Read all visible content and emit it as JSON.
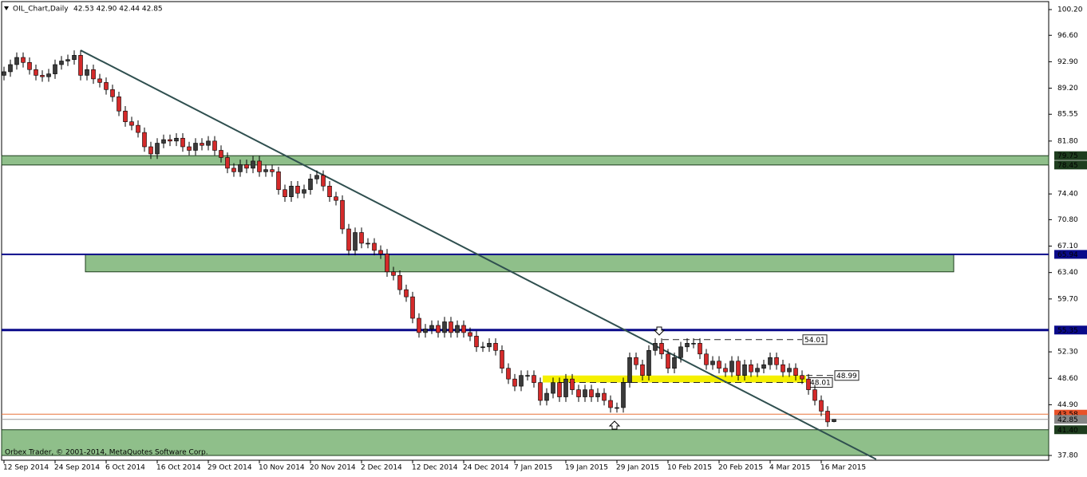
{
  "chart_data": {
    "type": "candlestick",
    "header": {
      "symbol": "OIL_Chart,Daily",
      "quote": "42.53 42.90 42.44 42.85"
    },
    "copyright": "Orbex Trader, © 2001-2014, MetaQuotes Software Corp.",
    "categories": [
      "12 Sep 2014",
      null,
      null,
      null,
      null,
      null,
      null,
      null,
      "24 Sep 2014",
      null,
      null,
      null,
      null,
      null,
      null,
      null,
      "6 Oct 2014",
      null,
      null,
      null,
      null,
      null,
      null,
      null,
      "16 Oct 2014",
      null,
      null,
      null,
      null,
      null,
      null,
      null,
      "29 Oct 2014",
      null,
      null,
      null,
      null,
      null,
      null,
      null,
      "10 Nov 2014",
      null,
      null,
      null,
      null,
      null,
      null,
      null,
      "20 Nov 2014",
      null,
      null,
      null,
      null,
      null,
      null,
      null,
      "2 Dec 2014",
      null,
      null,
      null,
      null,
      null,
      null,
      null,
      "12 Dec 2014",
      null,
      null,
      null,
      null,
      null,
      null,
      null,
      "24 Dec 2014",
      null,
      null,
      null,
      null,
      null,
      null,
      null,
      "7 Jan 2015",
      null,
      null,
      null,
      null,
      null,
      null,
      null,
      "19 Jan 2015",
      null,
      null,
      null,
      null,
      null,
      null,
      null,
      "29 Jan 2015",
      null,
      null,
      null,
      null,
      null,
      null,
      null,
      "10 Feb 2015",
      null,
      null,
      null,
      null,
      null,
      null,
      null,
      "20 Feb 2015",
      null,
      null,
      null,
      null,
      null,
      null,
      null,
      "4 Mar 2015",
      null,
      null,
      null,
      null,
      null,
      null,
      null,
      "16 Mar 2015",
      null,
      null
    ],
    "open": [
      91.0,
      91.5,
      92.5,
      93.5,
      92.8,
      91.8,
      91.0,
      90.8,
      91.2,
      92.5,
      93.0,
      93.2,
      93.8,
      91.0,
      91.8,
      90.5,
      90.0,
      89.0,
      88.0,
      86.0,
      84.5,
      84.0,
      83.0,
      81.0,
      80.0,
      81.5,
      82.0,
      81.8,
      82.2,
      81.0,
      80.5,
      81.5,
      81.2,
      81.8,
      80.5,
      79.5,
      78.0,
      77.5,
      78.5,
      78.0,
      79.0,
      77.5,
      77.8,
      77.5,
      75.0,
      74.0,
      75.5,
      74.5,
      75.0,
      76.5,
      77.0,
      75.5,
      74.0,
      73.5,
      69.5,
      66.5,
      69.0,
      67.5,
      67.5,
      66.5,
      66.0,
      63.5,
      63.0,
      61.0,
      60.0,
      57.0,
      55.0,
      55.5,
      56.0,
      55.0,
      56.5,
      55.0,
      56.0,
      55.0,
      54.5,
      53.0,
      53.0,
      53.5,
      52.5,
      50.0,
      48.5,
      47.5,
      49.0,
      49.0,
      48.0,
      45.5,
      46.5,
      48.0,
      46.0,
      48.5,
      47.0,
      46.0,
      47.0,
      46.0,
      46.5,
      45.5,
      44.5,
      44.5,
      48.0,
      51.5,
      50.5,
      49.0,
      52.5,
      53.5,
      52.0,
      50.0,
      51.5,
      53.0,
      53.5,
      53.5,
      52.0,
      50.5,
      51.0,
      50.0,
      49.5,
      51.0,
      49.0,
      50.5,
      49.5,
      50.0,
      50.5,
      51.5,
      50.5,
      49.5,
      50.0,
      49.0,
      48.5,
      47.0,
      45.5,
      44.0,
      42.53
    ],
    "high": [
      92.2,
      93.2,
      94.2,
      94.2,
      93.5,
      92.5,
      91.7,
      91.9,
      93.2,
      93.7,
      93.9,
      94.5,
      94.5,
      92.5,
      92.5,
      91.2,
      90.7,
      89.7,
      88.7,
      86.7,
      85.2,
      84.7,
      83.7,
      81.7,
      82.2,
      82.7,
      82.7,
      82.9,
      82.9,
      81.7,
      82.2,
      82.2,
      82.5,
      82.5,
      81.2,
      80.2,
      78.7,
      79.2,
      79.2,
      79.7,
      79.7,
      78.5,
      78.5,
      78.2,
      75.7,
      76.2,
      76.2,
      75.7,
      77.2,
      77.7,
      77.7,
      76.2,
      74.7,
      74.2,
      70.2,
      69.7,
      69.7,
      68.2,
      68.2,
      67.2,
      66.7,
      64.2,
      63.7,
      61.7,
      60.7,
      57.7,
      56.2,
      56.7,
      56.7,
      57.2,
      57.2,
      56.7,
      56.7,
      55.7,
      55.2,
      53.7,
      54.2,
      54.2,
      53.2,
      50.7,
      49.2,
      49.7,
      49.7,
      49.7,
      48.7,
      47.2,
      48.7,
      48.7,
      49.2,
      49.2,
      47.7,
      47.7,
      47.7,
      47.2,
      47.2,
      46.2,
      45.2,
      48.7,
      52.2,
      52.2,
      51.2,
      53.2,
      54.2,
      54.2,
      52.7,
      52.2,
      53.7,
      54.2,
      54.2,
      54.2,
      52.7,
      51.7,
      51.7,
      50.7,
      51.7,
      51.7,
      51.2,
      51.2,
      50.7,
      51.2,
      52.2,
      52.2,
      51.2,
      50.7,
      50.7,
      49.7,
      49.2,
      47.7,
      46.2,
      44.7,
      42.9
    ],
    "low": [
      90.3,
      90.8,
      91.8,
      92.1,
      91.1,
      90.3,
      90.1,
      90.1,
      90.5,
      91.8,
      92.3,
      92.5,
      90.3,
      90.3,
      89.8,
      89.3,
      88.3,
      87.3,
      85.3,
      83.8,
      83.3,
      82.3,
      80.3,
      79.3,
      79.3,
      80.8,
      81.1,
      81.1,
      80.3,
      79.8,
      79.8,
      80.5,
      80.5,
      79.8,
      78.8,
      77.3,
      76.8,
      76.8,
      77.3,
      77.3,
      76.8,
      76.8,
      76.8,
      74.3,
      73.3,
      73.3,
      73.8,
      73.8,
      74.3,
      75.8,
      74.8,
      73.3,
      72.8,
      68.8,
      65.8,
      65.8,
      66.8,
      66.8,
      65.8,
      65.3,
      62.8,
      62.3,
      60.3,
      59.3,
      56.3,
      54.3,
      54.3,
      54.8,
      54.3,
      54.3,
      54.3,
      54.3,
      54.3,
      53.8,
      52.3,
      52.3,
      52.3,
      51.8,
      49.3,
      47.8,
      46.8,
      46.8,
      48.3,
      47.3,
      44.8,
      44.8,
      45.8,
      45.3,
      45.3,
      46.3,
      45.3,
      45.3,
      45.3,
      45.3,
      44.8,
      43.8,
      43.8,
      43.8,
      47.3,
      49.8,
      48.3,
      48.3,
      51.8,
      51.3,
      49.3,
      49.3,
      50.8,
      52.3,
      52.8,
      51.3,
      49.8,
      49.8,
      49.3,
      48.8,
      48.8,
      48.3,
      48.3,
      48.8,
      48.8,
      49.3,
      49.8,
      49.8,
      48.8,
      48.8,
      48.3,
      47.8,
      46.3,
      44.8,
      43.3,
      41.8,
      42.44
    ],
    "close": [
      91.5,
      92.5,
      93.5,
      92.8,
      91.8,
      91.0,
      90.8,
      91.2,
      92.5,
      93.0,
      93.2,
      93.8,
      91.0,
      91.8,
      90.5,
      90.0,
      89.0,
      88.0,
      86.0,
      84.5,
      84.0,
      83.0,
      81.0,
      80.0,
      81.5,
      82.0,
      81.8,
      82.2,
      81.0,
      80.5,
      81.5,
      81.2,
      81.8,
      80.5,
      79.5,
      78.0,
      77.5,
      78.5,
      78.0,
      79.0,
      77.5,
      77.8,
      77.5,
      75.0,
      74.0,
      75.5,
      74.5,
      75.0,
      76.5,
      77.0,
      75.5,
      74.0,
      73.5,
      69.5,
      66.5,
      69.0,
      67.5,
      67.5,
      66.5,
      66.0,
      63.5,
      63.0,
      61.0,
      60.0,
      57.0,
      55.0,
      55.5,
      56.0,
      55.0,
      56.5,
      55.0,
      56.0,
      55.0,
      54.5,
      53.0,
      53.0,
      53.5,
      52.5,
      50.0,
      48.5,
      47.5,
      49.0,
      49.0,
      48.0,
      45.5,
      46.5,
      48.0,
      46.0,
      48.5,
      47.0,
      46.0,
      47.0,
      46.0,
      46.5,
      45.5,
      44.5,
      44.5,
      48.0,
      51.5,
      50.5,
      49.0,
      52.5,
      53.5,
      52.0,
      50.0,
      51.5,
      53.0,
      53.5,
      53.5,
      52.0,
      50.5,
      51.0,
      50.0,
      49.5,
      51.0,
      49.0,
      50.5,
      49.5,
      50.0,
      50.5,
      51.5,
      50.5,
      49.5,
      50.0,
      49.0,
      48.5,
      47.0,
      45.5,
      44.0,
      42.5,
      42.85
    ],
    "up_color": "#3a3a3a",
    "down_color": "#d42a2a",
    "ylim": [
      37.8,
      100.2
    ],
    "yticks": [
      {
        "value": 100.2,
        "label": "100.20"
      },
      {
        "value": 96.6,
        "label": "96.60"
      },
      {
        "value": 92.9,
        "label": "92.90"
      },
      {
        "value": 89.2,
        "label": "89.20"
      },
      85.55,
      {
        "value": 81.8,
        "label": "81.80"
      },
      {
        "value": 74.4,
        "label": "74.40"
      },
      {
        "value": 70.8,
        "label": "70.80"
      },
      {
        "value": 67.1,
        "label": "67.10"
      },
      {
        "value": 63.4,
        "label": "63.40"
      },
      {
        "value": 59.7,
        "label": "59.70"
      },
      {
        "value": 52.3,
        "label": "52.30"
      },
      {
        "value": 48.6,
        "label": "48.60"
      },
      {
        "value": 44.9,
        "label": "44.90"
      },
      {
        "value": 37.8,
        "label": "37.80"
      }
    ],
    "zones": [
      {
        "low": 78.45,
        "high": 79.75
      },
      {
        "low": 63.5,
        "high": 65.94
      },
      {
        "low": 37.8,
        "high": 41.4
      }
    ],
    "zone_color": "#8fbf8a",
    "lines": [
      {
        "value": 65.94,
        "color": "#0a0a8a",
        "width": 2
      },
      {
        "value": 55.35,
        "color": "#0a0a8a",
        "width": 3
      },
      {
        "value": 43.58,
        "color": "#e8743a",
        "width": 1
      },
      {
        "value": 42.85,
        "color": "#999999",
        "width": 1
      }
    ],
    "price_labels": [
      {
        "value": 79.75,
        "color": "#1e3d1e"
      },
      {
        "value": 78.45,
        "color": "#1e3d1e"
      },
      {
        "value": 65.94,
        "color": "#0a0a8a"
      },
      {
        "value": 55.35,
        "color": "#0a0a8a"
      },
      {
        "value": 43.58,
        "color": "#e8522a"
      },
      {
        "value": 42.85,
        "color": "#888888"
      },
      {
        "value": 41.4,
        "label": "41.40",
        "color": "#1e3d1e"
      }
    ],
    "dashed_levels": [
      {
        "value": 54.01
      },
      {
        "value": 48.99
      },
      {
        "value": 48.01
      }
    ],
    "band": {
      "low": 48.01,
      "high": 48.99,
      "color": "#f5f000"
    },
    "trendline": {
      "x": [
        12,
        130
      ],
      "y": [
        94.5,
        40.3
      ],
      "color": "#2f4f4f"
    }
  }
}
